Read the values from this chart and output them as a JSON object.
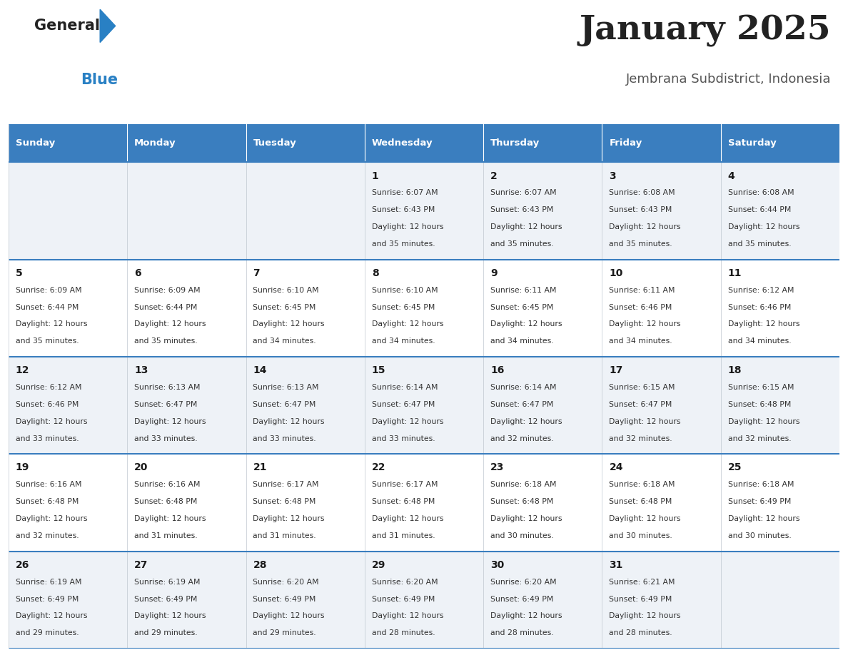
{
  "title": "January 2025",
  "subtitle": "Jembrana Subdistrict, Indonesia",
  "header_bg": "#3a7ebf",
  "header_text_color": "#ffffff",
  "row_bg_light": "#eef2f7",
  "row_bg_white": "#ffffff",
  "border_color": "#3a7ebf",
  "cell_border_color": "#c0c8d0",
  "day_headers": [
    "Sunday",
    "Monday",
    "Tuesday",
    "Wednesday",
    "Thursday",
    "Friday",
    "Saturday"
  ],
  "calendar_data": [
    [
      null,
      null,
      null,
      {
        "day": "1",
        "sunrise": "6:07 AM",
        "sunset": "6:43 PM",
        "daylight": "12 hours",
        "daylight2": "and 35 minutes."
      },
      {
        "day": "2",
        "sunrise": "6:07 AM",
        "sunset": "6:43 PM",
        "daylight": "12 hours",
        "daylight2": "and 35 minutes."
      },
      {
        "day": "3",
        "sunrise": "6:08 AM",
        "sunset": "6:43 PM",
        "daylight": "12 hours",
        "daylight2": "and 35 minutes."
      },
      {
        "day": "4",
        "sunrise": "6:08 AM",
        "sunset": "6:44 PM",
        "daylight": "12 hours",
        "daylight2": "and 35 minutes."
      }
    ],
    [
      {
        "day": "5",
        "sunrise": "6:09 AM",
        "sunset": "6:44 PM",
        "daylight": "12 hours",
        "daylight2": "and 35 minutes."
      },
      {
        "day": "6",
        "sunrise": "6:09 AM",
        "sunset": "6:44 PM",
        "daylight": "12 hours",
        "daylight2": "and 35 minutes."
      },
      {
        "day": "7",
        "sunrise": "6:10 AM",
        "sunset": "6:45 PM",
        "daylight": "12 hours",
        "daylight2": "and 34 minutes."
      },
      {
        "day": "8",
        "sunrise": "6:10 AM",
        "sunset": "6:45 PM",
        "daylight": "12 hours",
        "daylight2": "and 34 minutes."
      },
      {
        "day": "9",
        "sunrise": "6:11 AM",
        "sunset": "6:45 PM",
        "daylight": "12 hours",
        "daylight2": "and 34 minutes."
      },
      {
        "day": "10",
        "sunrise": "6:11 AM",
        "sunset": "6:46 PM",
        "daylight": "12 hours",
        "daylight2": "and 34 minutes."
      },
      {
        "day": "11",
        "sunrise": "6:12 AM",
        "sunset": "6:46 PM",
        "daylight": "12 hours",
        "daylight2": "and 34 minutes."
      }
    ],
    [
      {
        "day": "12",
        "sunrise": "6:12 AM",
        "sunset": "6:46 PM",
        "daylight": "12 hours",
        "daylight2": "and 33 minutes."
      },
      {
        "day": "13",
        "sunrise": "6:13 AM",
        "sunset": "6:47 PM",
        "daylight": "12 hours",
        "daylight2": "and 33 minutes."
      },
      {
        "day": "14",
        "sunrise": "6:13 AM",
        "sunset": "6:47 PM",
        "daylight": "12 hours",
        "daylight2": "and 33 minutes."
      },
      {
        "day": "15",
        "sunrise": "6:14 AM",
        "sunset": "6:47 PM",
        "daylight": "12 hours",
        "daylight2": "and 33 minutes."
      },
      {
        "day": "16",
        "sunrise": "6:14 AM",
        "sunset": "6:47 PM",
        "daylight": "12 hours",
        "daylight2": "and 32 minutes."
      },
      {
        "day": "17",
        "sunrise": "6:15 AM",
        "sunset": "6:47 PM",
        "daylight": "12 hours",
        "daylight2": "and 32 minutes."
      },
      {
        "day": "18",
        "sunrise": "6:15 AM",
        "sunset": "6:48 PM",
        "daylight": "12 hours",
        "daylight2": "and 32 minutes."
      }
    ],
    [
      {
        "day": "19",
        "sunrise": "6:16 AM",
        "sunset": "6:48 PM",
        "daylight": "12 hours",
        "daylight2": "and 32 minutes."
      },
      {
        "day": "20",
        "sunrise": "6:16 AM",
        "sunset": "6:48 PM",
        "daylight": "12 hours",
        "daylight2": "and 31 minutes."
      },
      {
        "day": "21",
        "sunrise": "6:17 AM",
        "sunset": "6:48 PM",
        "daylight": "12 hours",
        "daylight2": "and 31 minutes."
      },
      {
        "day": "22",
        "sunrise": "6:17 AM",
        "sunset": "6:48 PM",
        "daylight": "12 hours",
        "daylight2": "and 31 minutes."
      },
      {
        "day": "23",
        "sunrise": "6:18 AM",
        "sunset": "6:48 PM",
        "daylight": "12 hours",
        "daylight2": "and 30 minutes."
      },
      {
        "day": "24",
        "sunrise": "6:18 AM",
        "sunset": "6:48 PM",
        "daylight": "12 hours",
        "daylight2": "and 30 minutes."
      },
      {
        "day": "25",
        "sunrise": "6:18 AM",
        "sunset": "6:49 PM",
        "daylight": "12 hours",
        "daylight2": "and 30 minutes."
      }
    ],
    [
      {
        "day": "26",
        "sunrise": "6:19 AM",
        "sunset": "6:49 PM",
        "daylight": "12 hours",
        "daylight2": "and 29 minutes."
      },
      {
        "day": "27",
        "sunrise": "6:19 AM",
        "sunset": "6:49 PM",
        "daylight": "12 hours",
        "daylight2": "and 29 minutes."
      },
      {
        "day": "28",
        "sunrise": "6:20 AM",
        "sunset": "6:49 PM",
        "daylight": "12 hours",
        "daylight2": "and 29 minutes."
      },
      {
        "day": "29",
        "sunrise": "6:20 AM",
        "sunset": "6:49 PM",
        "daylight": "12 hours",
        "daylight2": "and 28 minutes."
      },
      {
        "day": "30",
        "sunrise": "6:20 AM",
        "sunset": "6:49 PM",
        "daylight": "12 hours",
        "daylight2": "and 28 minutes."
      },
      {
        "day": "31",
        "sunrise": "6:21 AM",
        "sunset": "6:49 PM",
        "daylight": "12 hours",
        "daylight2": "and 28 minutes."
      },
      null
    ]
  ],
  "logo_general_color": "#222222",
  "logo_blue_color": "#2980c4",
  "logo_triangle_color": "#2980c4",
  "title_color": "#222222",
  "subtitle_color": "#555555",
  "figsize": [
    11.88,
    9.18
  ],
  "dpi": 100
}
